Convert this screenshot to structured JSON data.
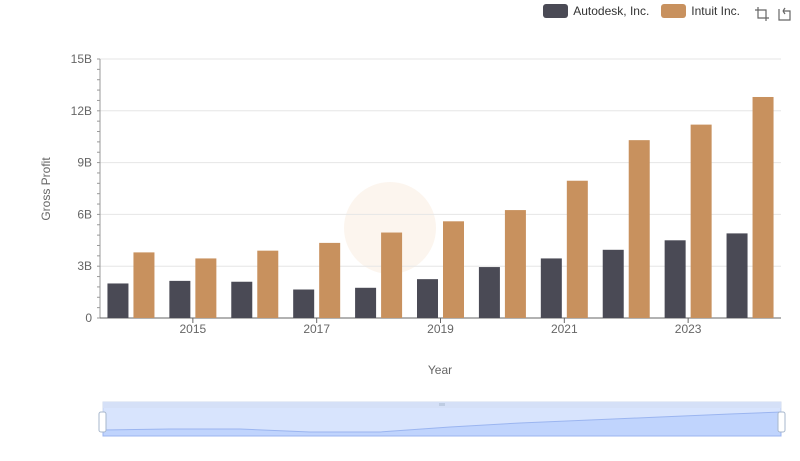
{
  "legend": {
    "items": [
      {
        "label": "Autodesk, Inc.",
        "color": "#4a4a55"
      },
      {
        "label": "Intuit Inc.",
        "color": "#c8915e"
      }
    ]
  },
  "toolbox": {
    "icons": [
      "zoom-icon",
      "restore-icon"
    ]
  },
  "chart_data": {
    "type": "bar",
    "categories": [
      "2014",
      "2015",
      "2016",
      "2017",
      "2018",
      "2019",
      "2020",
      "2021",
      "2022",
      "2023",
      "2024"
    ],
    "x_tick_labels": [
      "2015",
      "2017",
      "2019",
      "2021",
      "2023"
    ],
    "series": [
      {
        "name": "Autodesk, Inc.",
        "color": "#4a4a55",
        "values": [
          2.0,
          2.15,
          2.1,
          1.65,
          1.75,
          2.25,
          2.95,
          3.45,
          3.95,
          4.5,
          4.9
        ]
      },
      {
        "name": "Intuit Inc.",
        "color": "#c8915e",
        "values": [
          3.8,
          3.45,
          3.9,
          4.35,
          4.95,
          5.6,
          6.25,
          7.95,
          10.3,
          11.2,
          12.8
        ]
      }
    ],
    "unit": "B",
    "xlabel": "Year",
    "ylabel": "Gross Profit",
    "ylim": [
      0,
      15
    ],
    "yticks": [
      0,
      3,
      6,
      9,
      12,
      15
    ],
    "y_tick_labels": [
      "0",
      "3B",
      "6B",
      "9B",
      "12B",
      "15B"
    ],
    "grid": true,
    "legend_position": "top-right"
  }
}
